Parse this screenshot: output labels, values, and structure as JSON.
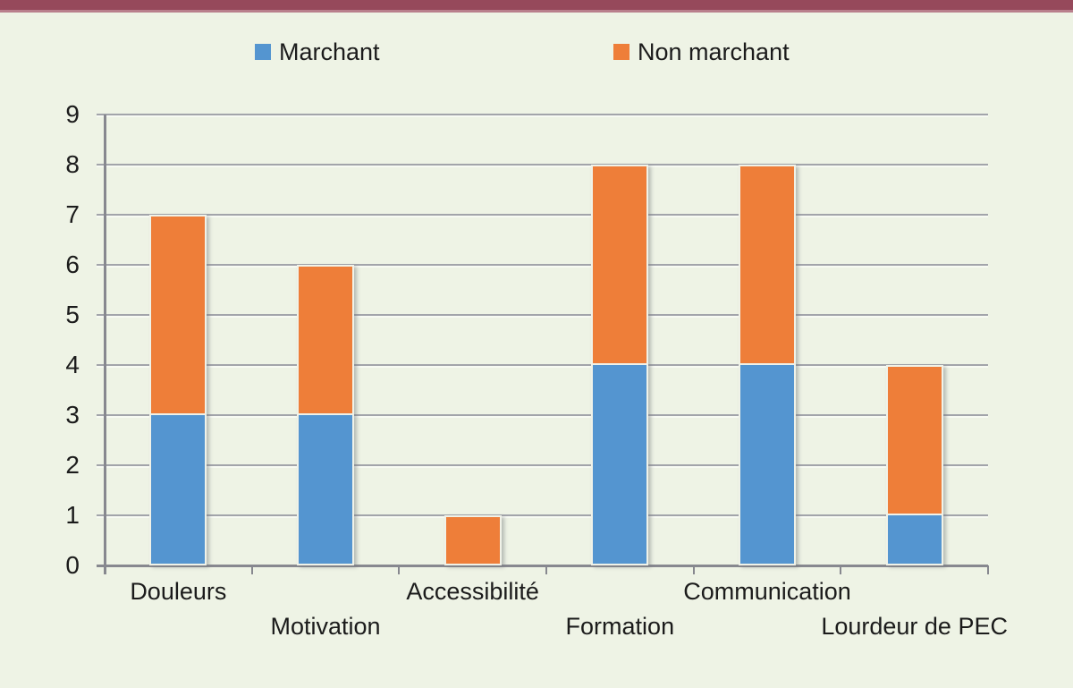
{
  "page": {
    "background_color": "#eef3e5",
    "accent_bar_color": "#96495b",
    "text_color": "#1b1b1b",
    "gridline_color": "#a2a4aa",
    "axis_color": "#87888f"
  },
  "chart_data": {
    "type": "bar",
    "stacked": true,
    "title": "",
    "xlabel": "",
    "ylabel": "",
    "categories": [
      "Douleurs",
      "Motivation",
      "Accessibilité",
      "Formation",
      "Communication",
      "Lourdeur de PEC"
    ],
    "series": [
      {
        "name": "Marchant",
        "color": "#5495d0",
        "values": [
          3,
          3,
          0,
          4,
          4,
          1
        ]
      },
      {
        "name": "Non marchant",
        "color": "#ee7e39",
        "values": [
          4,
          3,
          1,
          4,
          4,
          3
        ]
      }
    ],
    "ylim": [
      0,
      9
    ],
    "yticks": [
      0,
      1,
      2,
      3,
      4,
      5,
      6,
      7,
      8,
      9
    ],
    "grid": true,
    "legend_position": "top"
  }
}
